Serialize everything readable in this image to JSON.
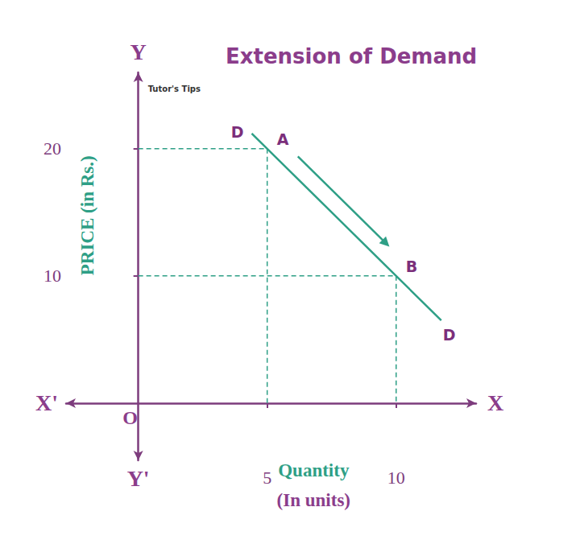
{
  "chart_data": {
    "type": "line",
    "title": "Extension of Demand",
    "watermark": "Tutor's Tips",
    "x_label": [
      "Quantity",
      "(In units)"
    ],
    "y_label": "PRICE (in Rs.)",
    "series": [
      {
        "name": "D",
        "color": "#2e9f86",
        "x": [
          4.4,
          5,
          10,
          11.75
        ],
        "values": [
          21.2,
          20,
          10,
          6.5
        ]
      }
    ],
    "points": [
      {
        "label": "A",
        "x": 5,
        "y": 20
      },
      {
        "label": "B",
        "x": 10,
        "y": 10
      }
    ],
    "movement": {
      "from": "A",
      "to": "B"
    },
    "axis_names": {
      "x_end": "X",
      "x_start": "X'",
      "y_end": "Y",
      "y_start": "Y'",
      "origin": "O"
    },
    "xlim": [
      -2.8,
      13.1
    ],
    "ylim": [
      -4.5,
      26
    ],
    "xticks": [
      5,
      10
    ],
    "yticks": [
      10,
      20
    ],
    "grid": false
  }
}
